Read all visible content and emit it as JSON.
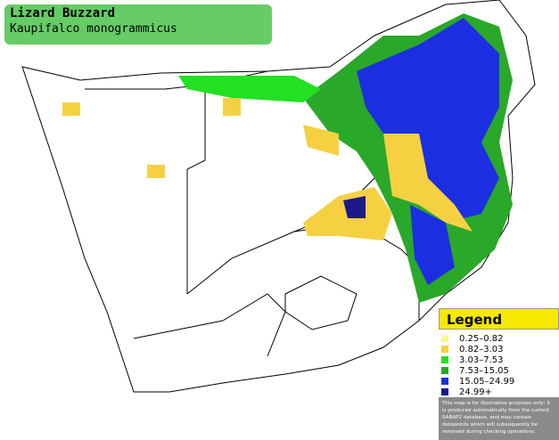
{
  "header": {
    "title": "Lizard Buzzard",
    "subtitle": "Kaupifalco monogrammicus"
  },
  "legend": {
    "title": "Legend",
    "items": [
      {
        "label": "0.25–0.82",
        "color": "#fff68f"
      },
      {
        "label": "0.82–3.03",
        "color": "#f5d142"
      },
      {
        "label": "3.03–7.53",
        "color": "#22e022"
      },
      {
        "label": "7.53–15.05",
        "color": "#2aa82a"
      },
      {
        "label": "15.05–24.99",
        "color": "#1c2fe0"
      },
      {
        "label": "24.99+",
        "color": "#1a1a8c"
      }
    ],
    "disclaimer": "This map is for illustrative purposes only; it is produced automatically from the current SABAP2 database, and may contain datapoints which will subsequently be removed during checking operations."
  }
}
